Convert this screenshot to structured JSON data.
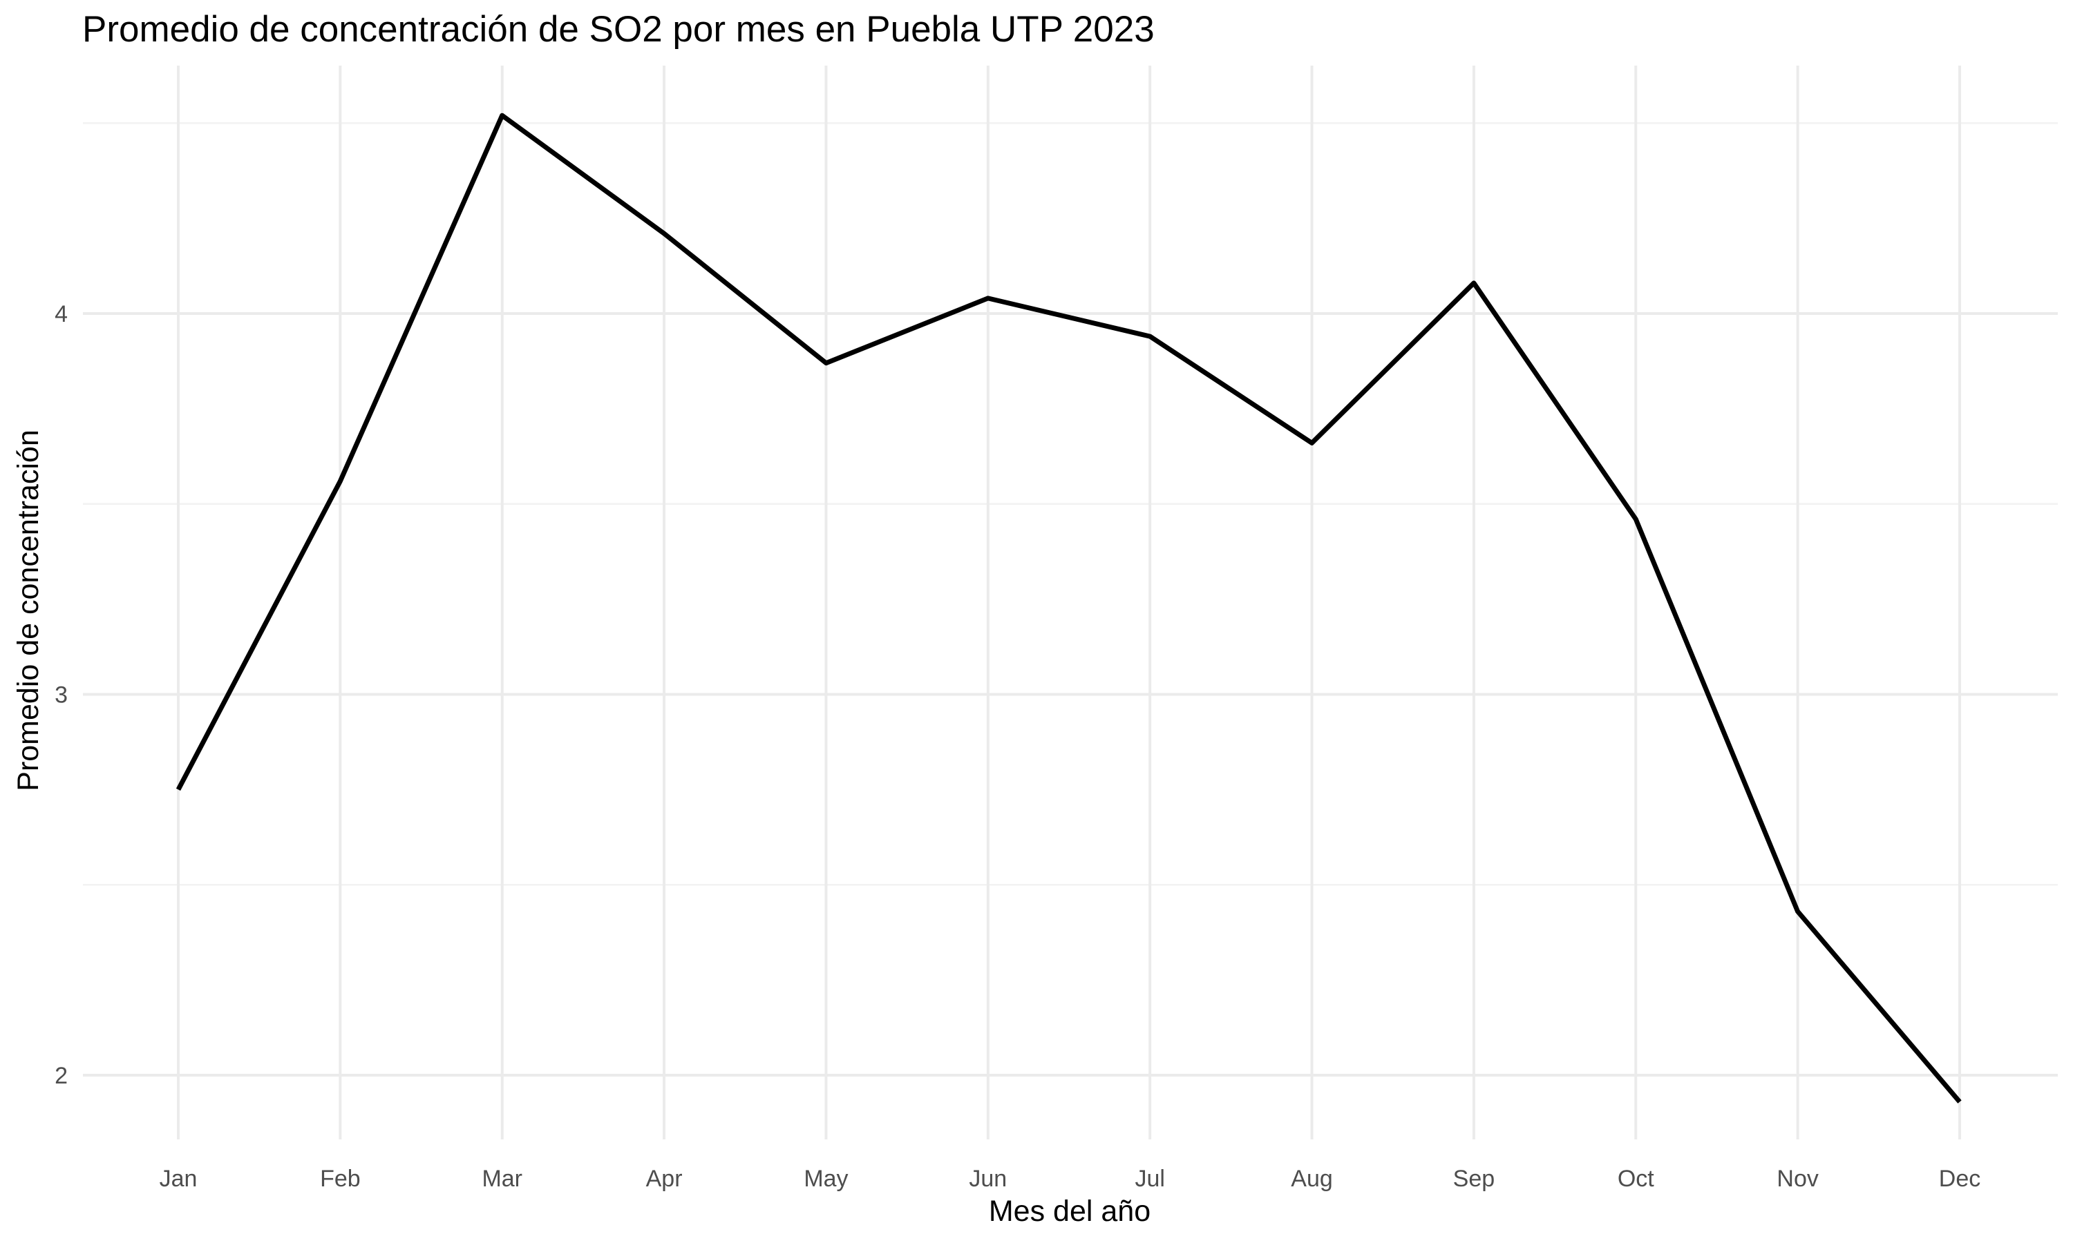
{
  "chart_data": {
    "type": "line",
    "title": "Promedio de concentración de SO2 por mes en Puebla UTP 2023",
    "xlabel": "Mes del año",
    "ylabel": "Promedio de concentración",
    "categories": [
      "Jan",
      "Feb",
      "Mar",
      "Apr",
      "May",
      "Jun",
      "Jul",
      "Aug",
      "Sep",
      "Oct",
      "Nov",
      "Dec"
    ],
    "series": [
      {
        "name": "SO2",
        "values": [
          2.75,
          3.56,
          4.52,
          4.21,
          3.87,
          4.04,
          3.94,
          3.66,
          4.08,
          3.46,
          2.43,
          1.93
        ]
      }
    ],
    "ylim": [
      1.85,
      4.6
    ],
    "y_major_ticks": [
      2,
      3,
      4
    ],
    "y_minor_ticks": [
      2.5,
      3.5,
      4.5
    ],
    "y_tick_labels": [
      "2",
      "3",
      "4"
    ],
    "grid": true,
    "legend": "none",
    "line_color": "#000000",
    "grid_color": "#ebebeb",
    "background": "#ffffff"
  }
}
